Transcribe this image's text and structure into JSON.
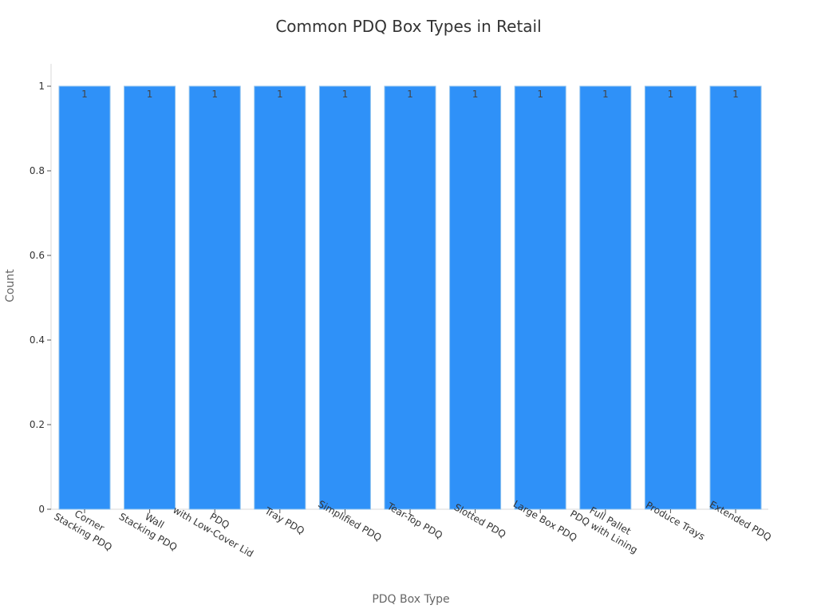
{
  "chart_data": {
    "type": "bar",
    "title": "Common PDQ Box Types in Retail",
    "xlabel": "PDQ Box Type",
    "ylabel": "Count",
    "ylim": [
      0,
      1.05
    ],
    "yticks": [
      0,
      0.2,
      0.4,
      0.6,
      0.8,
      1
    ],
    "ytick_labels": [
      "0",
      "0.2",
      "0.4",
      "0.6",
      "0.8",
      "1"
    ],
    "categories": [
      "Corner\nStacking PDQ",
      "Wall\nStacking PDQ",
      "PDQ\nwith Low-Cover Lid",
      "Tray PDQ",
      "Simplified PDQ",
      "Tear-Top PDQ",
      "Slotted PDQ",
      "Large Box PDQ",
      "Full Pallet\nPDQ with Lining",
      "Produce Trays",
      "Extended PDQ"
    ],
    "values": [
      1,
      1,
      1,
      1,
      1,
      1,
      1,
      1,
      1,
      1,
      1
    ],
    "data_labels": [
      "1",
      "1",
      "1",
      "1",
      "1",
      "1",
      "1",
      "1",
      "1",
      "1",
      "1"
    ],
    "grid": false,
    "bar_color": "#2f91f8"
  }
}
